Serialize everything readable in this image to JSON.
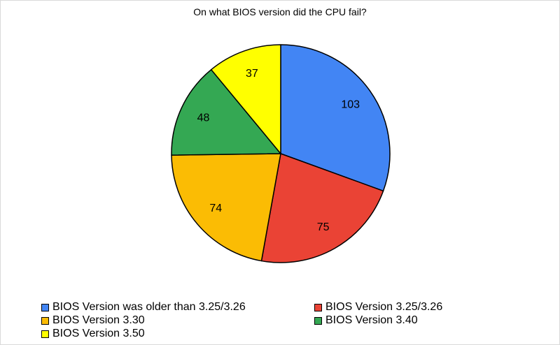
{
  "chart_data": {
    "type": "pie",
    "title": "On what BIOS version did the CPU fail?",
    "categories": [
      "BIOS Version was older than 3.25/3.26",
      "BIOS Version 3.25/3.26",
      "BIOS Version 3.30",
      "BIOS Version 3.40",
      "BIOS Version 3.50"
    ],
    "values": [
      103,
      75,
      74,
      48,
      37
    ],
    "value_labels": [
      "103",
      "75",
      "74",
      "48",
      "37"
    ],
    "colors": [
      "#4285f4",
      "#ea4335",
      "#fbbc04",
      "#34a853",
      "#ffff00"
    ],
    "start_angle": "12 o'clock",
    "direction": "clockwise",
    "legend_position": "bottom",
    "data_labels": "inside"
  }
}
